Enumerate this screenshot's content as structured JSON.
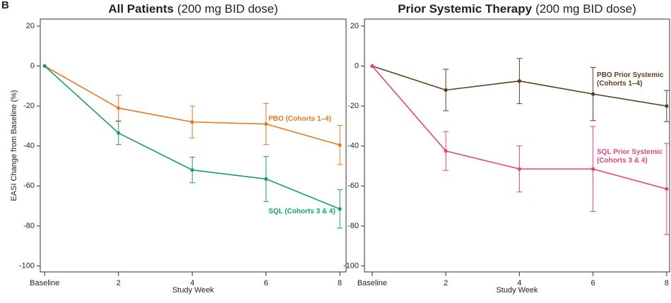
{
  "panel_label": "B",
  "chart_data": [
    {
      "type": "line",
      "title": "All Patients",
      "title_note": "(200 mg BID dose)",
      "ylabel": "EASI Change from Baseline (%)",
      "xlabel": "Study Week",
      "x": [
        0,
        2,
        4,
        6,
        8
      ],
      "xticks": [
        {
          "value": 0,
          "label": "Baseline"
        },
        2,
        4,
        6,
        8
      ],
      "xlim": [
        -0.12,
        8.17
      ],
      "ylim": [
        -103,
        23.5
      ],
      "yticks": [
        20,
        0,
        -20,
        -40,
        -60,
        -80,
        -100
      ],
      "series": [
        {
          "name": "PBO (Cohorts 1–4)",
          "color": "#e87722",
          "values": [
            0,
            -21,
            -28,
            -29,
            -39.5
          ],
          "errors": [
            null,
            6.4,
            8,
            10.3,
            9.8
          ]
        },
        {
          "name": "SQL (Cohorts 3 & 4)",
          "color": "#1a9e6e",
          "values": [
            0,
            -33.5,
            -52,
            -56.5,
            -71.5
          ],
          "errors": [
            null,
            5.8,
            6.4,
            11.3,
            9.6
          ]
        }
      ]
    },
    {
      "type": "line",
      "title": "Prior Systemic Therapy",
      "title_note": "(200 mg BID dose)",
      "xlabel": "Study Week",
      "x": [
        0,
        2,
        4,
        6,
        8
      ],
      "xticks": [
        {
          "value": 0,
          "label": "Baseline"
        },
        2,
        4,
        6,
        8
      ],
      "xlim": [
        -0.21,
        8.08
      ],
      "ylim": [
        -103,
        23.5
      ],
      "yticks": [
        20,
        0,
        -20,
        -40,
        -60,
        -80,
        -100
      ],
      "series": [
        {
          "name": "PBO Prior Systemic\n(Cohorts 1–4)",
          "color": "#5c3d1e",
          "values": [
            0,
            -12,
            -7.5,
            -14,
            -20
          ],
          "errors": [
            null,
            10.4,
            11.3,
            13.3,
            7.8
          ]
        },
        {
          "name": "SQL Prior Systemic\n(Cohorts 3 & 4)",
          "color": "#e0457b",
          "values": [
            0,
            -42.5,
            -51.5,
            -51.5,
            -61.5
          ],
          "errors": [
            null,
            9.7,
            11.5,
            21.3,
            22.8
          ]
        }
      ]
    }
  ]
}
